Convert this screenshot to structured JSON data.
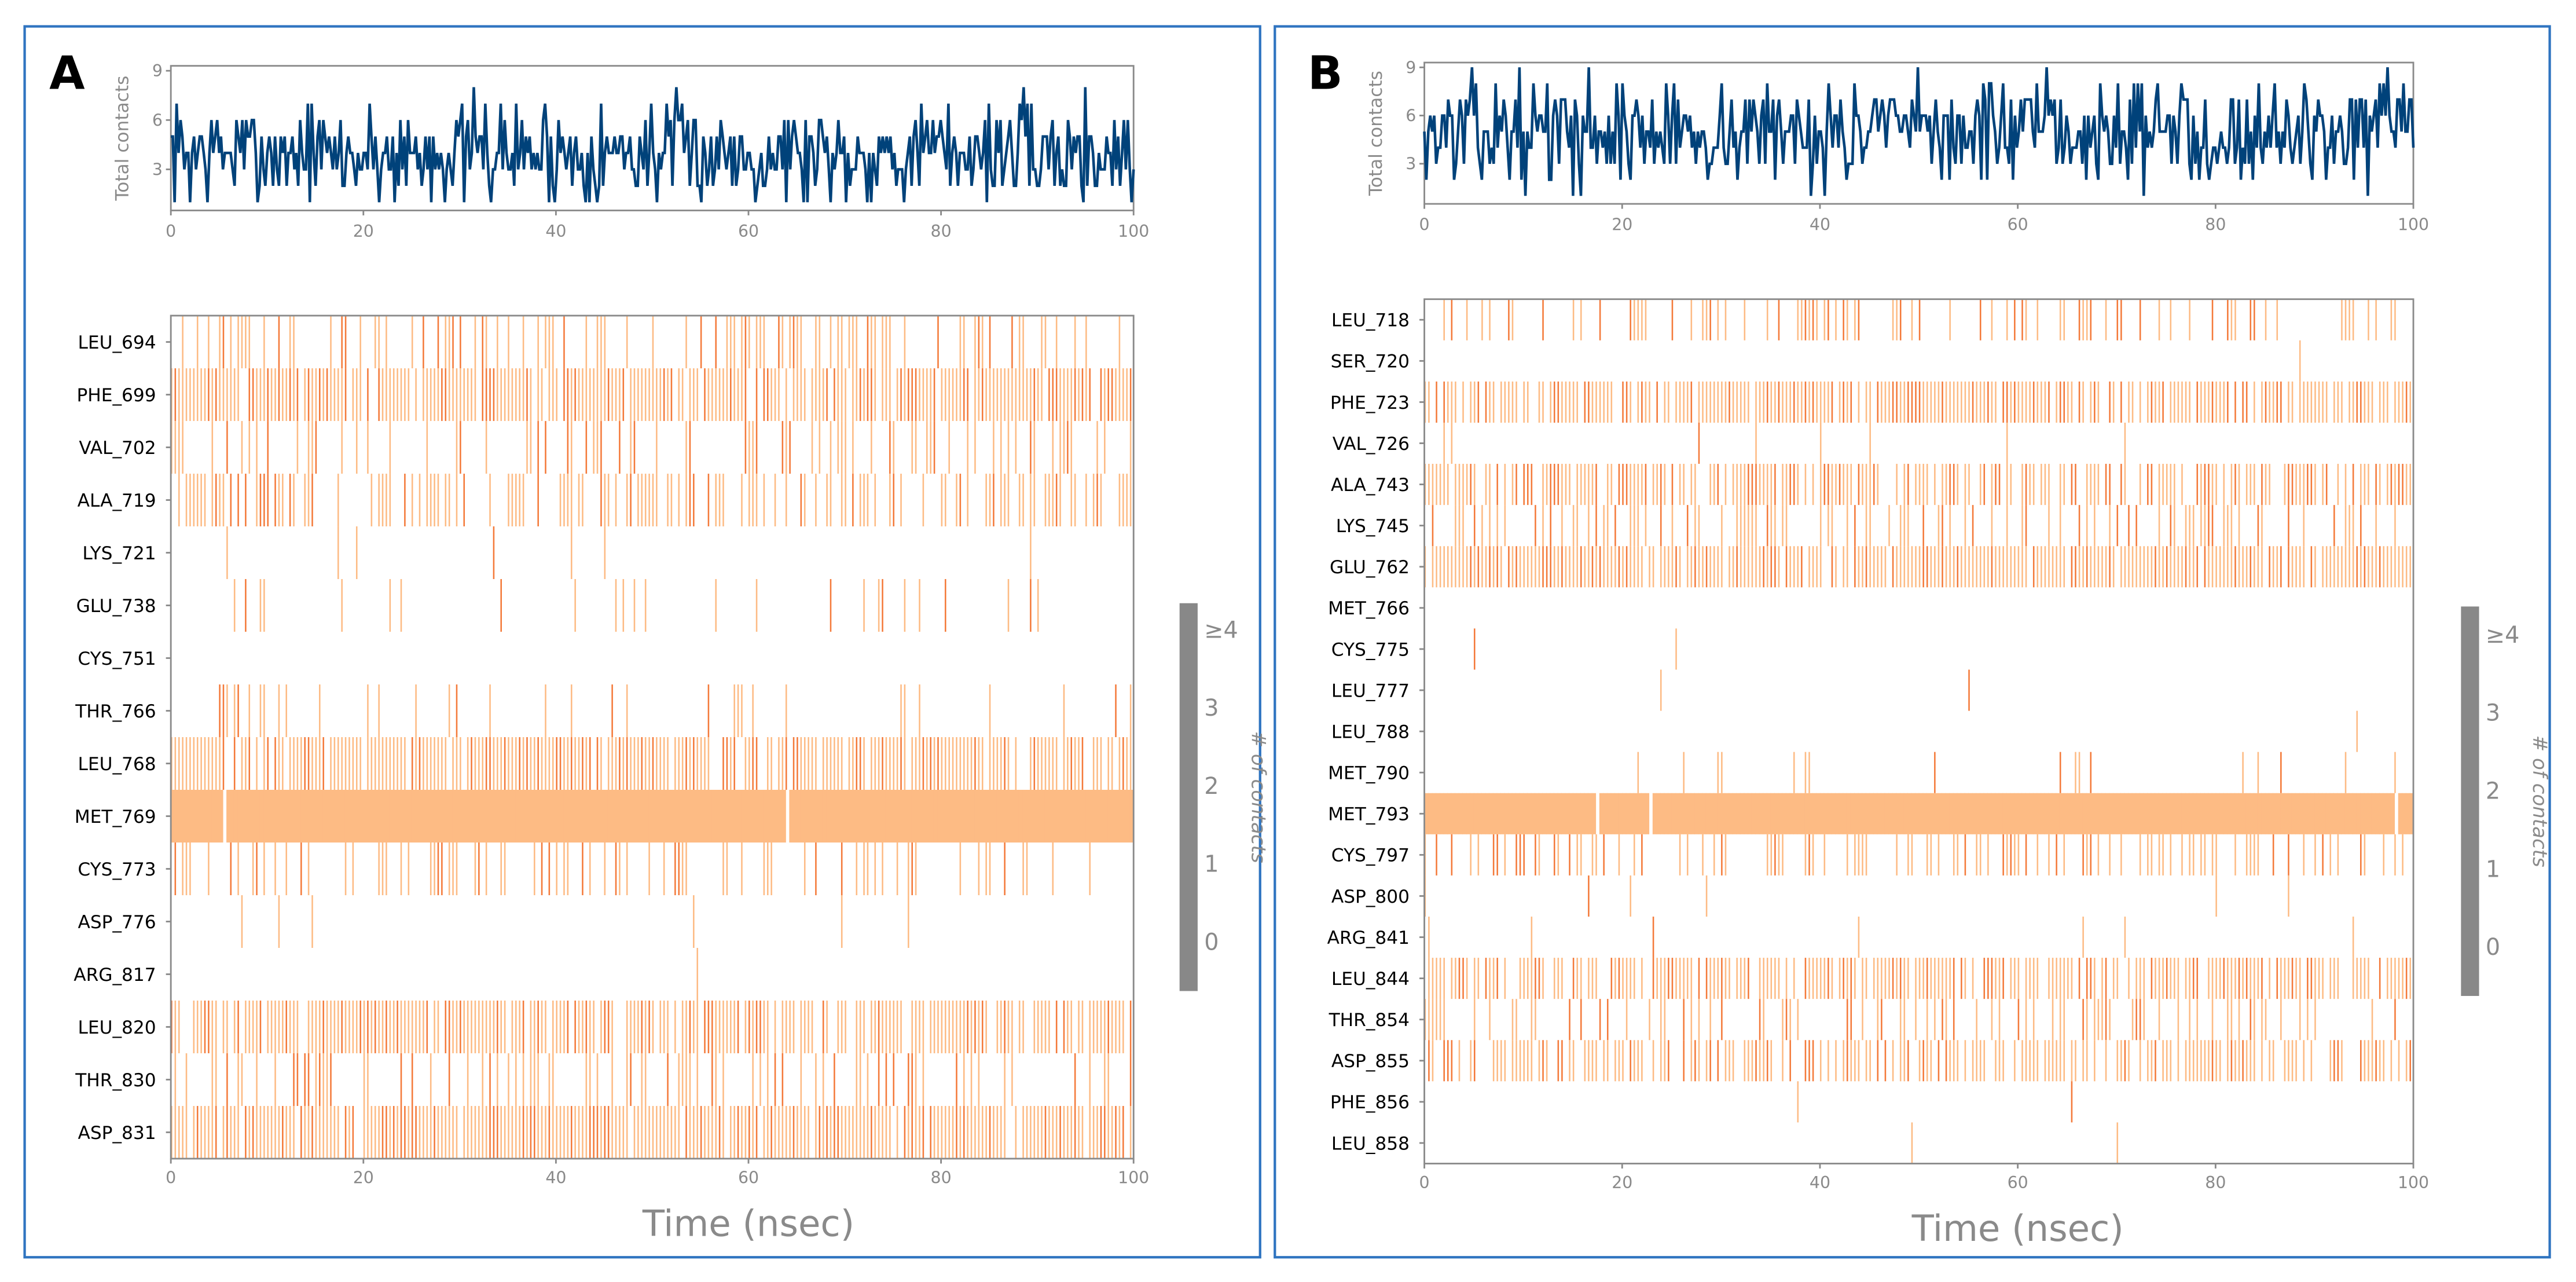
{
  "colors": {
    "line": "#00427a",
    "light": "#fdbb84",
    "dark": "#f47a3a",
    "panel_border": "#2f74c0",
    "colorbar": "#888888"
  },
  "chart_data": [
    {
      "panel": "A",
      "type": "line+heatmap",
      "top": {
        "ylabel": "Total contacts",
        "yticks": [
          "3",
          "6",
          "9"
        ],
        "ylim": [
          0.5,
          9.3
        ],
        "xlim": [
          0,
          100
        ],
        "xticks": [
          "0",
          "20",
          "40",
          "60",
          "80",
          "100"
        ],
        "mean": 4,
        "min": 1,
        "max": 9
      },
      "heatmap": {
        "xlabel": "Time (nsec)",
        "xlim": [
          0,
          100
        ],
        "xticks": [
          "0",
          "20",
          "40",
          "60",
          "80",
          "100"
        ],
        "residues": [
          "LEU_694",
          "PHE_699",
          "VAL_702",
          "ALA_719",
          "LYS_721",
          "GLU_738",
          "CYS_751",
          "THR_766",
          "LEU_768",
          "MET_769",
          "CYS_773",
          "ASP_776",
          "ARG_817",
          "LEU_820",
          "THR_830",
          "ASP_831"
        ],
        "occupancy": [
          0.35,
          0.9,
          0.3,
          0.5,
          0.03,
          0.1,
          0.01,
          0.15,
          0.85,
          0.99,
          0.25,
          0.02,
          0.01,
          0.8,
          0.3,
          0.9
        ]
      },
      "colorbar": {
        "title": "# of contacts",
        "ticks": [
          "0",
          "1",
          "2",
          "3",
          "≥4"
        ]
      }
    },
    {
      "panel": "B",
      "type": "line+heatmap",
      "top": {
        "ylabel": "Total contacts",
        "yticks": [
          "3",
          "6",
          "9"
        ],
        "ylim": [
          0.5,
          9.3
        ],
        "xlim": [
          0,
          100
        ],
        "xticks": [
          "0",
          "20",
          "40",
          "60",
          "80",
          "100"
        ],
        "mean": 5,
        "min": 1,
        "max": 9
      },
      "heatmap": {
        "xlabel": "Time (nsec)",
        "xlim": [
          0,
          100
        ],
        "xticks": [
          "0",
          "20",
          "40",
          "60",
          "80",
          "100"
        ],
        "residues": [
          "LEU_718",
          "SER_720",
          "PHE_723",
          "VAL_726",
          "ALA_743",
          "LYS_745",
          "GLU_762",
          "MET_766",
          "CYS_775",
          "LEU_777",
          "LEU_788",
          "MET_790",
          "MET_793",
          "CYS_797",
          "ASP_800",
          "ARG_841",
          "LEU_844",
          "THR_854",
          "ASP_855",
          "PHE_856",
          "LEU_858"
        ],
        "occupancy": [
          0.35,
          0.01,
          0.8,
          0.02,
          0.7,
          0.4,
          0.9,
          0.005,
          0.01,
          0.005,
          0.005,
          0.05,
          0.99,
          0.4,
          0.01,
          0.05,
          0.75,
          0.3,
          0.6,
          0.01,
          0.01
        ]
      },
      "colorbar": {
        "title": "# of contacts",
        "ticks": [
          "0",
          "1",
          "2",
          "3",
          "≥4"
        ]
      }
    }
  ]
}
